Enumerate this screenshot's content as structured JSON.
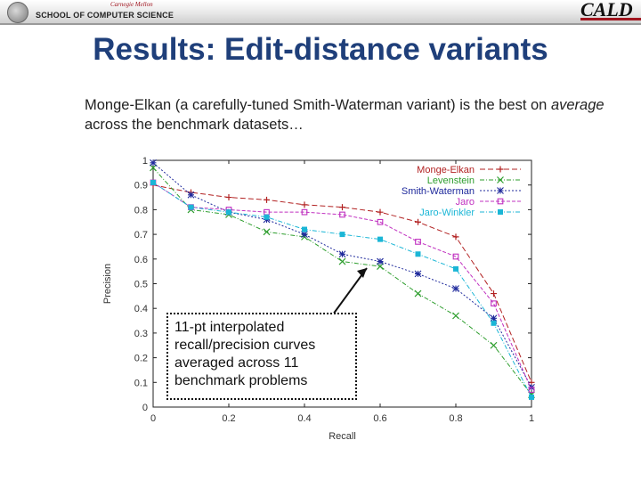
{
  "header": {
    "university": "Carnegie Mellon",
    "school": "SCHOOL OF COMPUTER SCIENCE",
    "lab_logo": "CALD"
  },
  "slide": {
    "title": "Results: Edit-distance variants",
    "body_part1": "Monge-Elkan (a carefully-tuned Smith-Waterman variant) is the best on ",
    "body_emphasis": "average",
    "body_part2": " across the benchmark datasets…",
    "callout": "11-pt interpolated recall/precision curves averaged across 11 benchmark problems"
  },
  "chart_data": {
    "type": "line",
    "xlabel": "Recall",
    "ylabel": "Precision",
    "xlim": [
      0,
      1
    ],
    "ylim": [
      0,
      1
    ],
    "x_ticks": [
      "0",
      "0.2",
      "0.4",
      "0.6",
      "0.8",
      "1"
    ],
    "y_ticks": [
      "0",
      "0.1",
      "0.2",
      "0.3",
      "0.4",
      "0.5",
      "0.6",
      "0.7",
      "0.8",
      "0.9",
      "1"
    ],
    "grid": false,
    "legend_position": "top-right",
    "x": [
      0,
      0.1,
      0.2,
      0.3,
      0.4,
      0.5,
      0.6,
      0.7,
      0.8,
      0.9,
      1
    ],
    "series": [
      {
        "name": "Monge-Elkan",
        "color": "#b22222",
        "dash": "6,3",
        "marker": "plus",
        "values": [
          0.9,
          0.87,
          0.85,
          0.84,
          0.82,
          0.81,
          0.79,
          0.75,
          0.69,
          0.46,
          0.1
        ]
      },
      {
        "name": "Levenstein",
        "color": "#2e9e2e",
        "dash": "5,2,1,2",
        "marker": "cross",
        "values": [
          0.97,
          0.8,
          0.78,
          0.71,
          0.69,
          0.59,
          0.57,
          0.46,
          0.37,
          0.25,
          0.05
        ]
      },
      {
        "name": "Smith-Waterman",
        "color": "#1f2a9c",
        "dash": "2,2",
        "marker": "star",
        "values": [
          0.99,
          0.86,
          0.79,
          0.76,
          0.7,
          0.62,
          0.59,
          0.54,
          0.48,
          0.36,
          0.08
        ]
      },
      {
        "name": "Jaro",
        "color": "#c030c0",
        "dash": "4,2",
        "marker": "square-open",
        "values": [
          0.91,
          0.81,
          0.8,
          0.79,
          0.79,
          0.78,
          0.75,
          0.67,
          0.61,
          0.42,
          0.07
        ]
      },
      {
        "name": "Jaro-Winkler",
        "color": "#1bb6d6",
        "dash": "5,2,1,2",
        "marker": "square-filled",
        "values": [
          0.91,
          0.81,
          0.79,
          0.77,
          0.72,
          0.7,
          0.68,
          0.62,
          0.56,
          0.34,
          0.04
        ]
      }
    ]
  }
}
